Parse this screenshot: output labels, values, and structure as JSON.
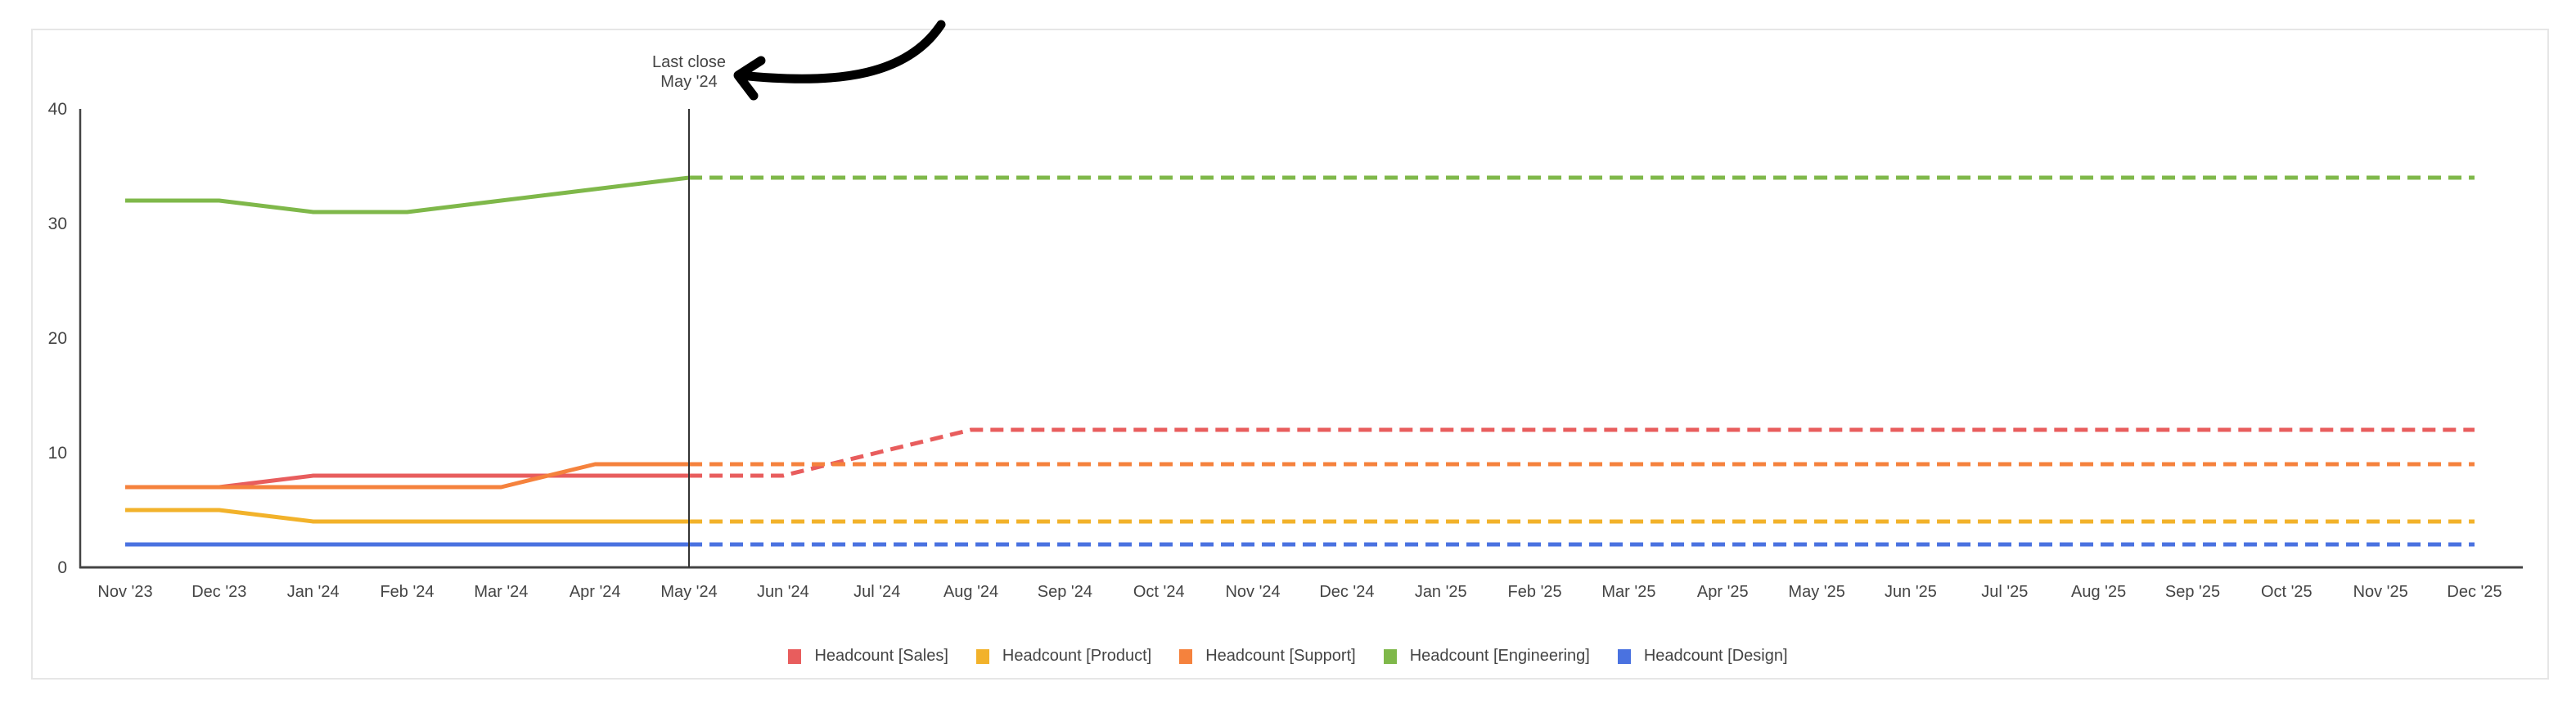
{
  "annotation": {
    "line1": "Last close",
    "line2": "May '24",
    "arrow_color": "#000000"
  },
  "colors": {
    "sales": "#e85d5d",
    "product": "#f2b22a",
    "support": "#f5823d",
    "engineering": "#7fb84a",
    "design": "#4a72e0",
    "axis": "#444444",
    "card_border": "#e6e6e6"
  },
  "legend": [
    {
      "label": "Headcount [Sales]",
      "color": "#e85d5d"
    },
    {
      "label": "Headcount [Product]",
      "color": "#f2b22a"
    },
    {
      "label": "Headcount [Support]",
      "color": "#f5823d"
    },
    {
      "label": "Headcount [Engineering]",
      "color": "#7fb84a"
    },
    {
      "label": "Headcount [Design]",
      "color": "#4a72e0"
    }
  ],
  "chart_data": {
    "type": "line",
    "title": "",
    "xlabel": "",
    "ylabel": "",
    "ylim": [
      0,
      40
    ],
    "yticks": [
      0,
      10,
      20,
      30,
      40
    ],
    "grid": false,
    "legend_position": "bottom",
    "categories": [
      "Nov '23",
      "Dec '23",
      "Jan '24",
      "Feb '24",
      "Mar '24",
      "Apr '24",
      "May '24",
      "Jun '24",
      "Jul '24",
      "Aug '24",
      "Sep '24",
      "Oct '24",
      "Nov '24",
      "Dec '24",
      "Jan '25",
      "Feb '25",
      "Mar '25",
      "Apr '25",
      "May '25",
      "Jun '25",
      "Jul '25",
      "Aug '25",
      "Sep '25",
      "Oct '25",
      "Nov '25",
      "Dec '25"
    ],
    "actual_through_index": 6,
    "annotations": [
      {
        "x": "May '24",
        "text": "Last close\nMay '24",
        "style": "vertical line; actuals solid before, forecast dashed after"
      }
    ],
    "series": [
      {
        "name": "Headcount [Sales]",
        "color": "#e85d5d",
        "values": [
          7,
          7,
          8,
          8,
          8,
          8,
          8,
          8,
          10,
          12,
          12,
          12,
          12,
          12,
          12,
          12,
          12,
          12,
          12,
          12,
          12,
          12,
          12,
          12,
          12,
          12
        ]
      },
      {
        "name": "Headcount [Product]",
        "color": "#f2b22a",
        "values": [
          5,
          5,
          4,
          4,
          4,
          4,
          4,
          4,
          4,
          4,
          4,
          4,
          4,
          4,
          4,
          4,
          4,
          4,
          4,
          4,
          4,
          4,
          4,
          4,
          4,
          4
        ]
      },
      {
        "name": "Headcount [Support]",
        "color": "#f5823d",
        "values": [
          7,
          7,
          7,
          7,
          7,
          9,
          9,
          9,
          9,
          9,
          9,
          9,
          9,
          9,
          9,
          9,
          9,
          9,
          9,
          9,
          9,
          9,
          9,
          9,
          9,
          9
        ]
      },
      {
        "name": "Headcount [Engineering]",
        "color": "#7fb84a",
        "values": [
          32,
          32,
          31,
          31,
          32,
          33,
          34,
          34,
          34,
          34,
          34,
          34,
          34,
          34,
          34,
          34,
          34,
          34,
          34,
          34,
          34,
          34,
          34,
          34,
          34,
          34
        ]
      },
      {
        "name": "Headcount [Design]",
        "color": "#4a72e0",
        "values": [
          2,
          2,
          2,
          2,
          2,
          2,
          2,
          2,
          2,
          2,
          2,
          2,
          2,
          2,
          2,
          2,
          2,
          2,
          2,
          2,
          2,
          2,
          2,
          2,
          2,
          2
        ]
      }
    ]
  }
}
